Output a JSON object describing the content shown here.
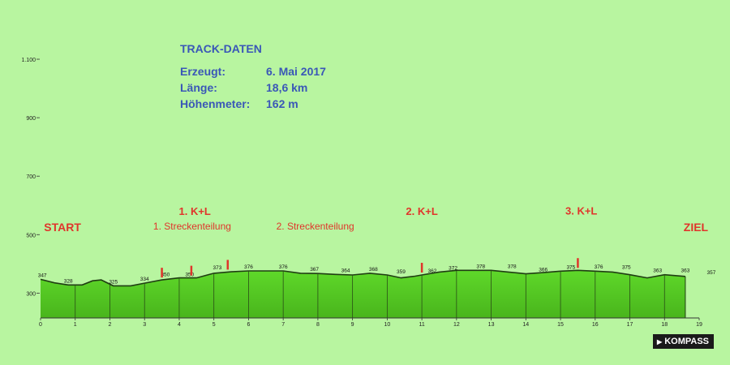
{
  "info": {
    "title": "TRACK-DATEN",
    "rows": [
      {
        "label": "Erzeugt:",
        "value": "6. Mai 2017"
      },
      {
        "label": "Länge:",
        "value": "18,6 km"
      },
      {
        "label": "Höhenmeter:",
        "value": "162 m"
      }
    ]
  },
  "brand": {
    "name": "KOMPASS",
    "icon": "arrow-icon"
  },
  "colors": {
    "background": "#b8f5a0",
    "fill_top": "#5fd82a",
    "fill_bottom": "#49b51c",
    "outline": "#1f3d12",
    "marker": "#e0352b",
    "title_text": "#3a57b7"
  },
  "chart_data": {
    "type": "area",
    "xlabel": "",
    "ylabel": "",
    "xlim": [
      0,
      19
    ],
    "ylim": [
      215,
      1150
    ],
    "x_ticks": [
      0,
      1,
      2,
      3,
      4,
      5,
      6,
      7,
      8,
      9,
      10,
      11,
      12,
      13,
      14,
      15,
      16,
      17,
      18,
      19
    ],
    "y_ticks": [
      {
        "value": 300,
        "label": "300"
      },
      {
        "value": 500,
        "label": "500"
      },
      {
        "value": 700,
        "label": "700"
      },
      {
        "value": 900,
        "label": "900"
      },
      {
        "value": 1100,
        "label": "1.100"
      }
    ],
    "profile": [
      {
        "x": 0.0,
        "y": 347
      },
      {
        "x": 0.4,
        "y": 335
      },
      {
        "x": 0.8,
        "y": 328
      },
      {
        "x": 1.2,
        "y": 328
      },
      {
        "x": 1.5,
        "y": 342
      },
      {
        "x": 1.75,
        "y": 345
      },
      {
        "x": 2.1,
        "y": 325
      },
      {
        "x": 2.6,
        "y": 325
      },
      {
        "x": 3.0,
        "y": 334
      },
      {
        "x": 3.5,
        "y": 345
      },
      {
        "x": 4.0,
        "y": 352
      },
      {
        "x": 4.5,
        "y": 352
      },
      {
        "x": 5.0,
        "y": 368
      },
      {
        "x": 5.5,
        "y": 373
      },
      {
        "x": 6.0,
        "y": 376
      },
      {
        "x": 6.5,
        "y": 376
      },
      {
        "x": 7.0,
        "y": 376
      },
      {
        "x": 7.5,
        "y": 368
      },
      {
        "x": 8.0,
        "y": 367
      },
      {
        "x": 8.5,
        "y": 364
      },
      {
        "x": 9.0,
        "y": 362
      },
      {
        "x": 9.5,
        "y": 368
      },
      {
        "x": 10.0,
        "y": 362
      },
      {
        "x": 10.4,
        "y": 352
      },
      {
        "x": 10.8,
        "y": 358
      },
      {
        "x": 11.0,
        "y": 362
      },
      {
        "x": 11.5,
        "y": 372
      },
      {
        "x": 12.0,
        "y": 378
      },
      {
        "x": 12.5,
        "y": 378
      },
      {
        "x": 13.0,
        "y": 378
      },
      {
        "x": 13.5,
        "y": 372
      },
      {
        "x": 14.0,
        "y": 366
      },
      {
        "x": 14.5,
        "y": 370
      },
      {
        "x": 15.0,
        "y": 375
      },
      {
        "x": 15.5,
        "y": 378
      },
      {
        "x": 16.0,
        "y": 375
      },
      {
        "x": 16.5,
        "y": 372
      },
      {
        "x": 17.0,
        "y": 363
      },
      {
        "x": 17.5,
        "y": 352
      },
      {
        "x": 18.0,
        "y": 363
      },
      {
        "x": 18.6,
        "y": 357
      }
    ],
    "elevation_labels": [
      {
        "x": 0.05,
        "y": 347,
        "text": "347"
      },
      {
        "x": 0.8,
        "y": 328,
        "text": "328"
      },
      {
        "x": 2.1,
        "y": 325,
        "text": "325"
      },
      {
        "x": 3.0,
        "y": 334,
        "text": "334"
      },
      {
        "x": 3.6,
        "y": 350,
        "text": "350"
      },
      {
        "x": 4.3,
        "y": 350,
        "text": "350"
      },
      {
        "x": 5.1,
        "y": 373,
        "text": "373"
      },
      {
        "x": 6.0,
        "y": 376,
        "text": "376"
      },
      {
        "x": 7.0,
        "y": 376,
        "text": "376"
      },
      {
        "x": 7.9,
        "y": 367,
        "text": "367"
      },
      {
        "x": 8.8,
        "y": 364,
        "text": "364"
      },
      {
        "x": 9.6,
        "y": 368,
        "text": "368"
      },
      {
        "x": 10.4,
        "y": 359,
        "text": "359"
      },
      {
        "x": 11.3,
        "y": 362,
        "text": "362"
      },
      {
        "x": 11.9,
        "y": 372,
        "text": "372"
      },
      {
        "x": 12.7,
        "y": 378,
        "text": "378"
      },
      {
        "x": 13.6,
        "y": 378,
        "text": "378"
      },
      {
        "x": 14.5,
        "y": 366,
        "text": "366"
      },
      {
        "x": 15.3,
        "y": 375,
        "text": "375"
      },
      {
        "x": 16.1,
        "y": 376,
        "text": "376"
      },
      {
        "x": 16.9,
        "y": 375,
        "text": "375"
      },
      {
        "x": 17.8,
        "y": 363,
        "text": "363"
      },
      {
        "x": 18.6,
        "y": 363,
        "text": "363"
      },
      {
        "x": 19.35,
        "y": 357,
        "text": "357"
      }
    ],
    "markers": [
      {
        "x": 3.5,
        "y": 345
      },
      {
        "x": 4.35,
        "y": 352
      },
      {
        "x": 5.4,
        "y": 372
      },
      {
        "x": 11.0,
        "y": 362
      },
      {
        "x": 15.5,
        "y": 378
      }
    ],
    "annotations": [
      {
        "text": "START",
        "x": 0.1,
        "y": 512,
        "size": 14
      },
      {
        "text": "1. Streckenteilung",
        "x": 3.25,
        "y": 517,
        "size": 12
      },
      {
        "text": "2. Streckenteilung",
        "x": 6.8,
        "y": 517,
        "size": 12
      },
      {
        "text": "1. K+L",
        "x": 4.45,
        "y": 567,
        "size": 13
      },
      {
        "text": "2. K+L",
        "x": 11.0,
        "y": 567,
        "size": 13
      },
      {
        "text": "3. K+L",
        "x": 15.6,
        "y": 569,
        "size": 13
      },
      {
        "text": "ZIEL",
        "x": 18.55,
        "y": 512,
        "size": 14
      }
    ]
  }
}
